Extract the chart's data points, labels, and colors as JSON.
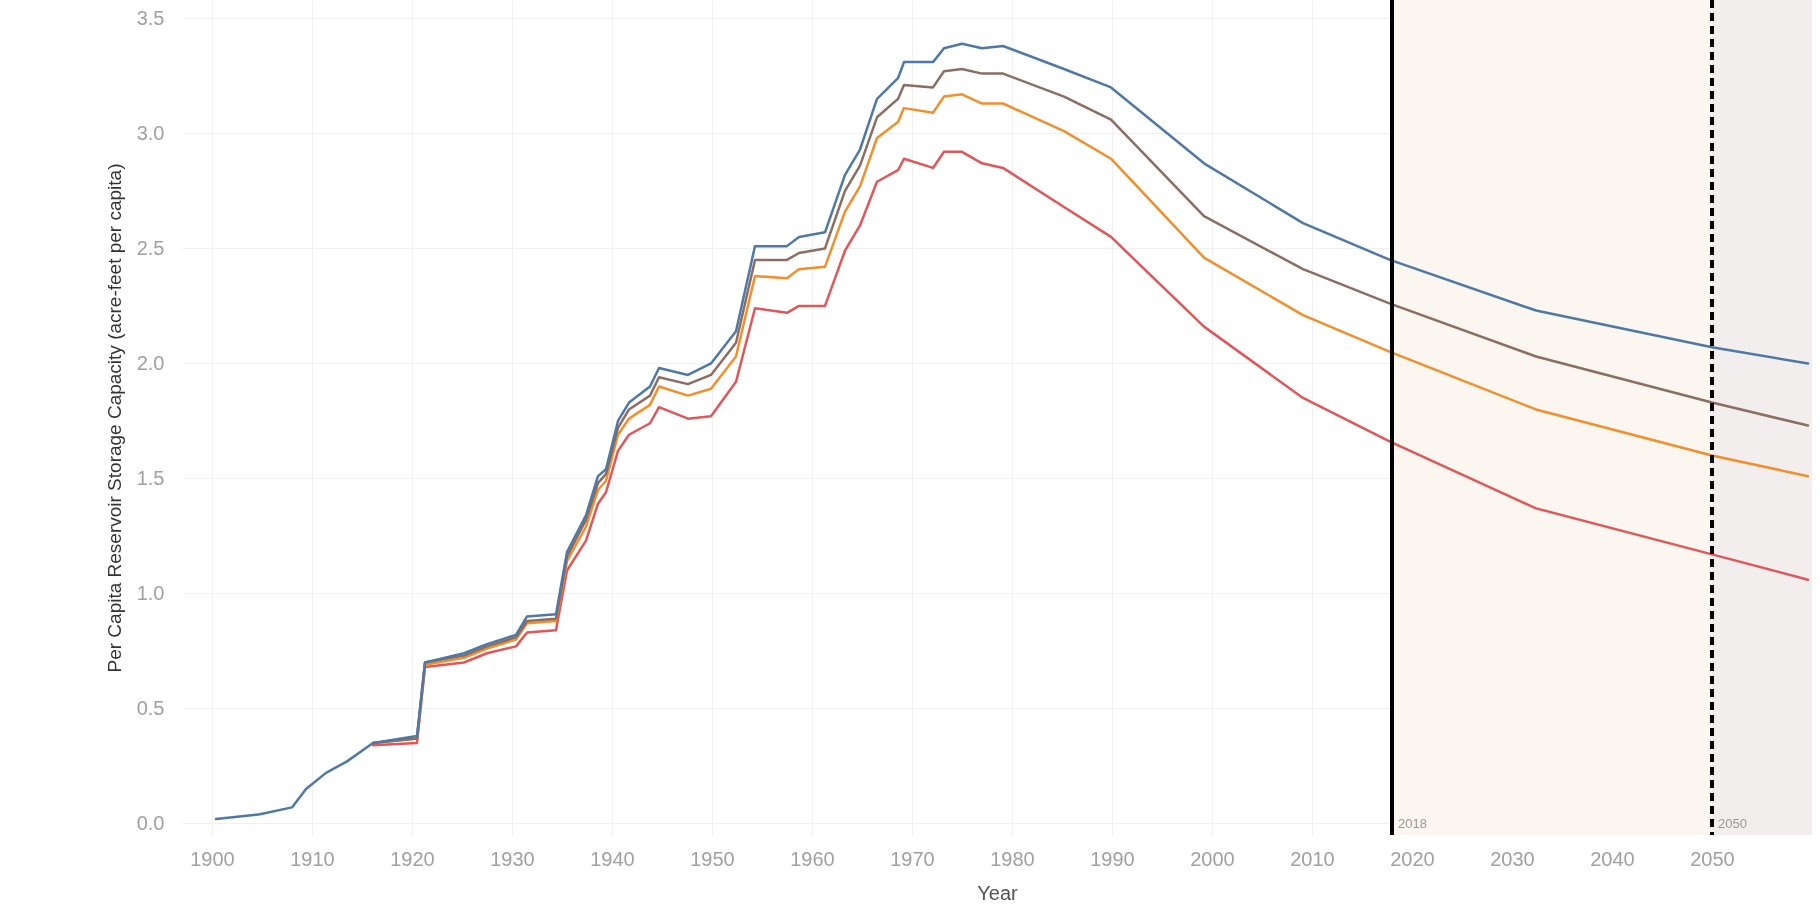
{
  "chart_data": {
    "type": "line",
    "xlabel": "Year",
    "ylabel": "Per Capita Reservoir Storage Capacity (acre-feet per capita)",
    "x": [
      1900.4,
      1904.8,
      1908,
      1909.4,
      1911.4,
      1913.5,
      1916.1,
      1920.5,
      1921.3,
      1925.2,
      1927.5,
      1930.4,
      1931.5,
      1934.4,
      1935.5,
      1937.4,
      1938.6,
      1939.4,
      1940.6,
      1941.7,
      1943.8,
      1944.7,
      1947.6,
      1949.9,
      1952.4,
      1954.3,
      1957.5,
      1958.7,
      1961.3,
      1963.3,
      1964.8,
      1966.5,
      1968.6,
      1969.2,
      1972.1,
      1973.2,
      1975,
      1977,
      1979.1,
      1985.2,
      1989.9,
      1999.2,
      2009.1,
      2017.8,
      2032.4,
      2050,
      2059.6
    ],
    "series": [
      {
        "color": "#e15759",
        "values": [
          null,
          null,
          null,
          null,
          null,
          null,
          0.34,
          0.35,
          0.68,
          0.7,
          0.74,
          0.77,
          0.83,
          0.84,
          1.1,
          1.23,
          1.39,
          1.44,
          1.62,
          1.69,
          1.74,
          1.81,
          1.76,
          1.77,
          1.92,
          2.24,
          2.22,
          2.25,
          2.25,
          2.49,
          2.6,
          2.79,
          2.84,
          2.89,
          2.85,
          2.92,
          2.92,
          2.87,
          2.85,
          2.68,
          2.55,
          2.16,
          1.85,
          1.66,
          1.37,
          1.17,
          1.06
        ]
      },
      {
        "color": "#f28e2b",
        "values": [
          null,
          null,
          null,
          null,
          null,
          null,
          0.35,
          0.37,
          0.69,
          0.72,
          0.76,
          0.8,
          0.87,
          0.88,
          1.14,
          1.29,
          1.45,
          1.49,
          1.69,
          1.76,
          1.82,
          1.9,
          1.86,
          1.89,
          2.03,
          2.38,
          2.37,
          2.41,
          2.42,
          2.66,
          2.77,
          2.98,
          3.05,
          3.11,
          3.09,
          3.16,
          3.17,
          3.13,
          3.13,
          3.01,
          2.89,
          2.46,
          2.21,
          2.05,
          1.8,
          1.6,
          1.51
        ]
      },
      {
        "color": "#8c6d62",
        "values": [
          null,
          null,
          null,
          null,
          null,
          null,
          0.35,
          0.37,
          0.7,
          0.73,
          0.77,
          0.81,
          0.88,
          0.89,
          1.16,
          1.32,
          1.48,
          1.52,
          1.72,
          1.8,
          1.86,
          1.94,
          1.91,
          1.95,
          2.09,
          2.45,
          2.45,
          2.48,
          2.5,
          2.75,
          2.86,
          3.07,
          3.15,
          3.21,
          3.2,
          3.27,
          3.28,
          3.26,
          3.26,
          3.16,
          3.06,
          2.64,
          2.41,
          2.26,
          2.03,
          1.83,
          1.73
        ]
      },
      {
        "color": "#4e79a7",
        "values": [
          0.02,
          0.04,
          0.07,
          0.15,
          0.22,
          0.27,
          0.35,
          0.38,
          0.7,
          0.74,
          0.78,
          0.82,
          0.9,
          0.91,
          1.18,
          1.34,
          1.51,
          1.54,
          1.75,
          1.83,
          1.9,
          1.98,
          1.95,
          2.0,
          2.14,
          2.51,
          2.51,
          2.55,
          2.57,
          2.82,
          2.93,
          3.15,
          3.24,
          3.31,
          3.31,
          3.37,
          3.39,
          3.37,
          3.38,
          3.28,
          3.2,
          2.87,
          2.61,
          2.45,
          2.23,
          2.07,
          2.0
        ]
      }
    ],
    "xlim": [
      1897,
      2060
    ],
    "ylim": [
      -0.05,
      3.58
    ],
    "xticks": [
      1900,
      1910,
      1920,
      1930,
      1940,
      1950,
      1960,
      1970,
      1980,
      1990,
      2000,
      2010,
      2020,
      2030,
      2040,
      2050
    ],
    "yticks": [
      {
        "value": 0,
        "label": "0.0"
      },
      0.5,
      {
        "value": 1,
        "label": "1.0"
      },
      1.5,
      {
        "value": 2,
        "label": "2.0"
      },
      2.5,
      {
        "value": 3,
        "label": "3.0"
      },
      3.5
    ],
    "bands": [
      {
        "axis": "x",
        "from": 2018,
        "to": 2050,
        "color": "#fbf6ef"
      },
      {
        "axis": "x",
        "from": 2050,
        "to": 2060,
        "color": "#f3eeee"
      }
    ],
    "ref_lines": [
      {
        "axis": "x",
        "value": 2018,
        "label": "2018",
        "color": "#000000",
        "line_style": "solid"
      },
      {
        "axis": "x",
        "value": 2050,
        "label": "2050",
        "color": "#000000",
        "line_style": "dashed"
      }
    ],
    "grid": true,
    "line_style": "solid"
  }
}
